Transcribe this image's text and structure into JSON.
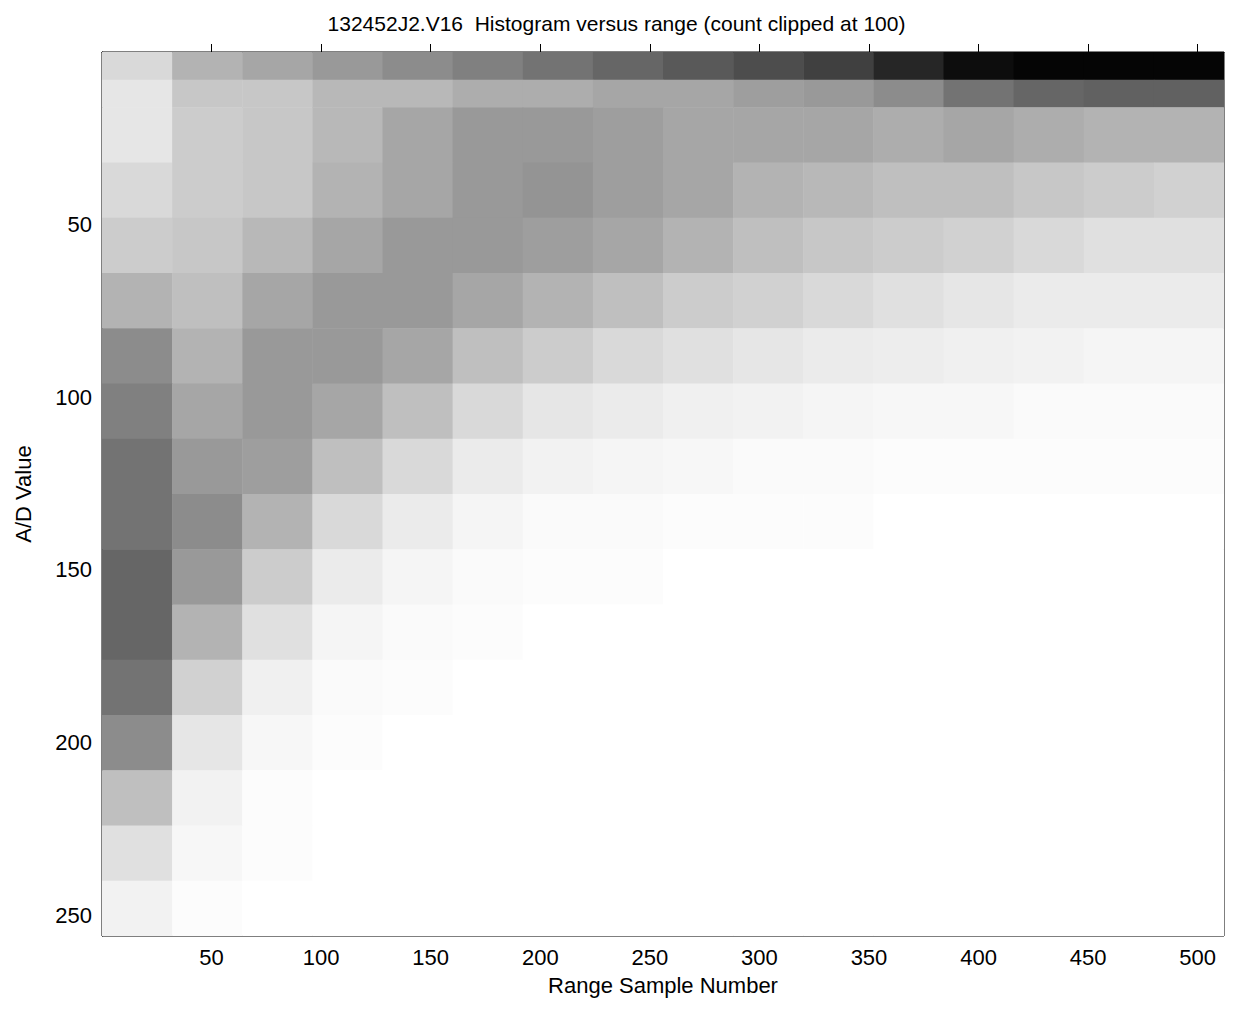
{
  "chart_data": {
    "type": "heatmap",
    "title": "132452J2.V16  Histogram versus range (count clipped at 100)",
    "x_label": "Range Sample Number",
    "y_label": "A/D Value",
    "xlim": [
      0,
      512
    ],
    "ylim": [
      0,
      256
    ],
    "xticks": [
      50,
      100,
      150,
      200,
      250,
      300,
      350,
      400,
      450,
      500
    ],
    "yticks": [
      50,
      100,
      150,
      200,
      250
    ],
    "grid": false,
    "zlim": [
      0,
      100
    ],
    "x_bins": [
      0,
      32,
      64,
      96,
      128,
      160,
      192,
      224,
      256,
      288,
      320,
      352,
      384,
      416,
      448,
      480,
      512
    ],
    "y_bins": [
      0,
      8,
      16,
      32,
      48,
      64,
      80,
      96,
      112,
      128,
      144,
      160,
      176,
      192,
      208,
      224,
      240,
      256
    ],
    "counts": [
      [
        15,
        30,
        35,
        40,
        45,
        50,
        55,
        60,
        65,
        70,
        75,
        85,
        95,
        98,
        98,
        98
      ],
      [
        10,
        22,
        22,
        28,
        28,
        32,
        32,
        35,
        35,
        38,
        40,
        45,
        55,
        60,
        62,
        62
      ],
      [
        10,
        20,
        22,
        28,
        35,
        40,
        40,
        38,
        35,
        35,
        35,
        32,
        35,
        32,
        30,
        30
      ],
      [
        15,
        20,
        22,
        30,
        35,
        40,
        42,
        38,
        35,
        30,
        28,
        25,
        25,
        22,
        20,
        18
      ],
      [
        20,
        22,
        28,
        35,
        40,
        40,
        38,
        35,
        30,
        25,
        22,
        20,
        18,
        15,
        12,
        12
      ],
      [
        30,
        25,
        35,
        40,
        40,
        35,
        30,
        25,
        20,
        18,
        15,
        12,
        10,
        8,
        8,
        8
      ],
      [
        45,
        30,
        40,
        40,
        35,
        25,
        20,
        15,
        12,
        10,
        8,
        7,
        6,
        5,
        4,
        4
      ],
      [
        50,
        35,
        40,
        35,
        25,
        15,
        10,
        8,
        6,
        5,
        4,
        3,
        3,
        2,
        2,
        2
      ],
      [
        55,
        40,
        38,
        25,
        15,
        8,
        5,
        4,
        3,
        2,
        2,
        1,
        1,
        1,
        1,
        1
      ],
      [
        55,
        45,
        30,
        15,
        8,
        4,
        2,
        2,
        1,
        1,
        1,
        0,
        0,
        0,
        0,
        0
      ],
      [
        60,
        40,
        20,
        8,
        4,
        2,
        1,
        1,
        0,
        0,
        0,
        0,
        0,
        0,
        0,
        0
      ],
      [
        60,
        30,
        12,
        4,
        2,
        1,
        0,
        0,
        0,
        0,
        0,
        0,
        0,
        0,
        0,
        0
      ],
      [
        55,
        18,
        6,
        2,
        1,
        0,
        0,
        0,
        0,
        0,
        0,
        0,
        0,
        0,
        0,
        0
      ],
      [
        45,
        10,
        3,
        1,
        0,
        0,
        0,
        0,
        0,
        0,
        0,
        0,
        0,
        0,
        0,
        0
      ],
      [
        25,
        5,
        1,
        0,
        0,
        0,
        0,
        0,
        0,
        0,
        0,
        0,
        0,
        0,
        0,
        0
      ],
      [
        12,
        3,
        1,
        0,
        0,
        0,
        0,
        0,
        0,
        0,
        0,
        0,
        0,
        0,
        0,
        0
      ],
      [
        5,
        1,
        0,
        0,
        0,
        0,
        0,
        0,
        0,
        0,
        0,
        0,
        0,
        0,
        0,
        0
      ]
    ]
  }
}
